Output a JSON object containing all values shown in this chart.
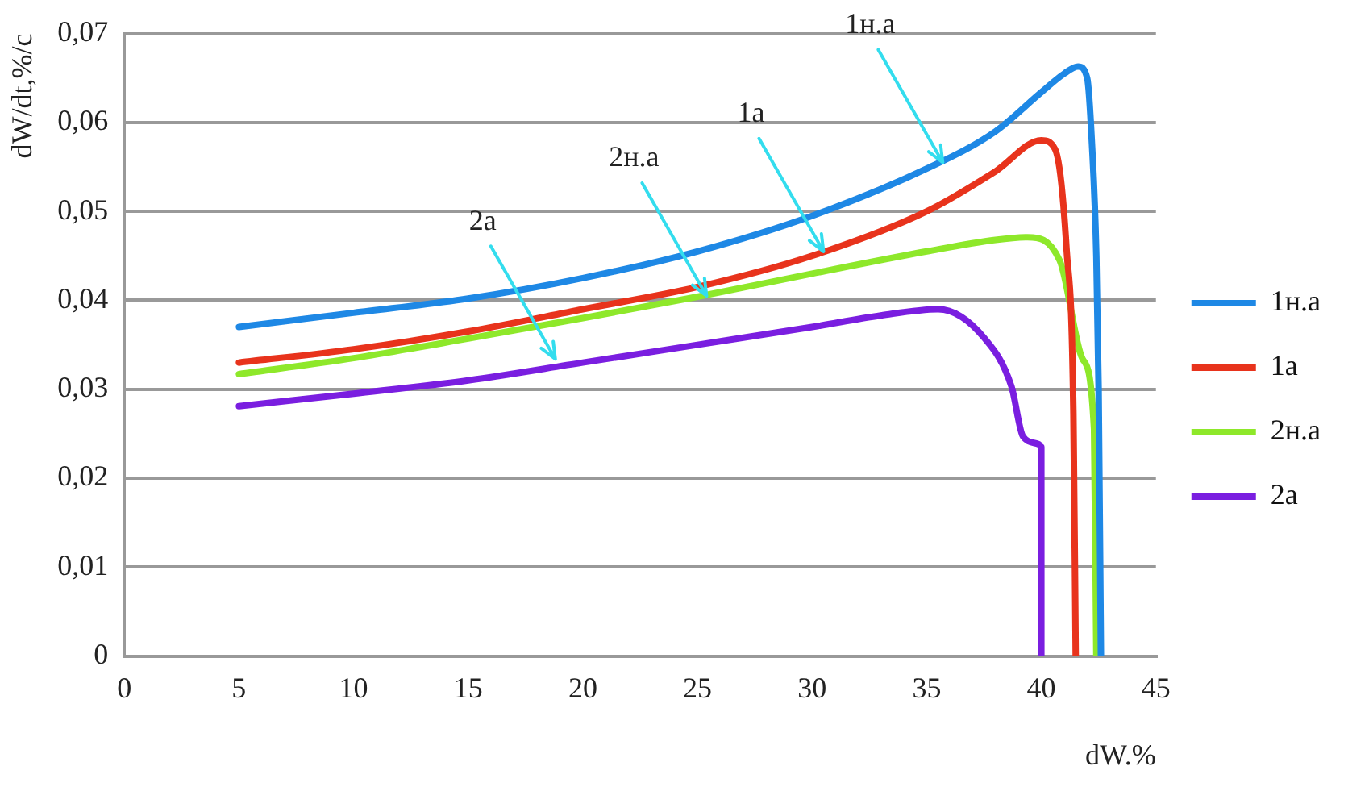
{
  "chart_data": {
    "type": "line",
    "xlabel": "dW.%",
    "ylabel": "dW/dt,%/c",
    "xlim": [
      0,
      45
    ],
    "xticks": [
      0,
      5,
      10,
      15,
      20,
      25,
      30,
      35,
      40,
      45
    ],
    "ylim": [
      0,
      0.07
    ],
    "yticks": [
      {
        "value": 0,
        "label": "0"
      },
      {
        "value": 0.01,
        "label": "0,01"
      },
      {
        "value": 0.02,
        "label": "0,02"
      },
      {
        "value": 0.03,
        "label": "0,03"
      },
      {
        "value": 0.04,
        "label": "0,04"
      },
      {
        "value": 0.05,
        "label": "0,05"
      },
      {
        "value": 0.06,
        "label": "0,06"
      },
      {
        "value": 0.07,
        "label": "0,07"
      }
    ],
    "grid": "y",
    "legend": "right",
    "marker": "none",
    "line_style": "solid",
    "series": [
      {
        "name": "1н.а",
        "color": "#1e88e5",
        "x": [
          5,
          10,
          15,
          20,
          25,
          30,
          35,
          38,
          40,
          41,
          41.6,
          42,
          42.2,
          42.4,
          42.5,
          42.6
        ],
        "values": [
          0.037,
          0.0386,
          0.0402,
          0.0425,
          0.0455,
          0.0495,
          0.0548,
          0.059,
          0.0634,
          0.0655,
          0.0663,
          0.065,
          0.058,
          0.045,
          0.03,
          0
        ]
      },
      {
        "name": "1а",
        "color": "#e8331c",
        "x": [
          5,
          10,
          15,
          20,
          25,
          30,
          35,
          38,
          40,
          40.6,
          41.1,
          41.4,
          41.5
        ],
        "values": [
          0.033,
          0.0345,
          0.0365,
          0.039,
          0.0415,
          0.045,
          0.05,
          0.0545,
          0.058,
          0.057,
          0.0458,
          0.0273,
          0
        ]
      },
      {
        "name": "2н.а",
        "color": "#8ee82a",
        "x": [
          5,
          10,
          15,
          20,
          25,
          30,
          35,
          38,
          39.4,
          40.8,
          41.8,
          42.3,
          42.4
        ],
        "values": [
          0.0317,
          0.0335,
          0.0357,
          0.038,
          0.0404,
          0.043,
          0.0455,
          0.0468,
          0.0471,
          0.0445,
          0.0334,
          0.0255,
          0
        ]
      },
      {
        "name": "2а",
        "color": "#7a1ee0",
        "x": [
          5,
          10,
          15,
          20,
          25,
          30,
          33,
          35.5,
          37.5,
          38.7,
          39.2,
          39.9,
          40,
          40
        ],
        "values": [
          0.0281,
          0.0295,
          0.031,
          0.033,
          0.035,
          0.037,
          0.0383,
          0.039,
          0.0358,
          0.0303,
          0.0247,
          0.0238,
          0.0235,
          0
        ]
      }
    ],
    "annotations": [
      {
        "text": "1н.а",
        "x": 35.7,
        "y": 0.0555
      },
      {
        "text": "1а",
        "x": 30.5,
        "y": 0.0455
      },
      {
        "text": "2н.а",
        "x": 25.4,
        "y": 0.0405
      },
      {
        "text": "2а",
        "x": 18.8,
        "y": 0.0334
      }
    ]
  }
}
